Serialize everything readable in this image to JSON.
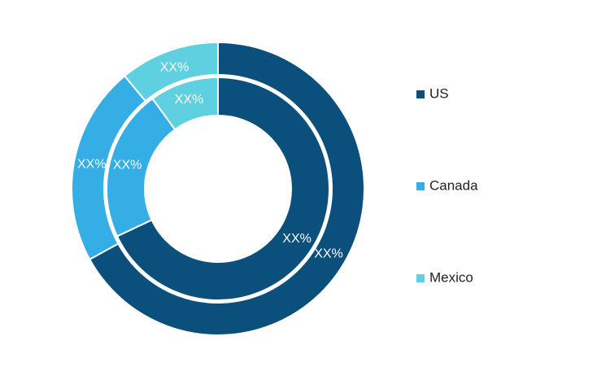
{
  "chart_data": {
    "type": "donut",
    "categories": [
      "US",
      "Canada",
      "Mexico"
    ],
    "colors": [
      "#0b4f7c",
      "#34aee4",
      "#5fd0df"
    ],
    "series": [
      {
        "values": [
          67,
          22,
          11
        ],
        "value_labels": [
          "XX%",
          "XX%",
          "XX%"
        ]
      },
      {
        "values": [
          68,
          22,
          10
        ],
        "value_labels": [
          "XX%",
          "XX%",
          "XX%"
        ]
      }
    ],
    "legend": "right"
  }
}
